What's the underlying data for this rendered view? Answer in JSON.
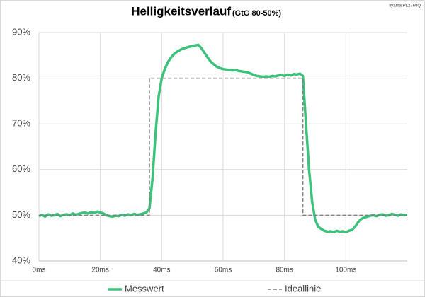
{
  "chart_data": {
    "type": "line",
    "title": "Helligkeitsverlauf",
    "subtitle": "(GtG 80-50%)",
    "annotation": "Iiyama PL2768Q",
    "xlim": [
      0,
      120
    ],
    "ylim": [
      40,
      90
    ],
    "xticks": [
      {
        "value": 0,
        "label": "0ms"
      },
      {
        "value": 20,
        "label": "20ms"
      },
      {
        "value": 40,
        "label": "40ms"
      },
      {
        "value": 60,
        "label": "60ms"
      },
      {
        "value": 80,
        "label": "80ms"
      },
      {
        "value": 100,
        "label": "100ms"
      }
    ],
    "yticks": [
      {
        "value": 40,
        "label": "40%"
      },
      {
        "value": 50,
        "label": "50%"
      },
      {
        "value": 60,
        "label": "60%"
      },
      {
        "value": 70,
        "label": "70%"
      },
      {
        "value": 80,
        "label": "80%"
      },
      {
        "value": 90,
        "label": "90%"
      }
    ],
    "grid": true,
    "series": [
      {
        "name": "Messwert",
        "color": "#3cc27a",
        "dashed": false,
        "x": [
          0,
          1,
          2,
          3,
          4,
          5,
          6,
          7,
          8,
          9,
          10,
          11,
          12,
          13,
          14,
          15,
          16,
          17,
          18,
          19,
          20,
          21,
          22,
          23,
          24,
          25,
          26,
          27,
          28,
          29,
          30,
          31,
          32,
          33,
          34,
          35,
          36,
          37,
          38,
          39,
          40,
          41,
          42,
          43,
          44,
          45,
          46,
          47,
          48,
          49,
          50,
          51,
          52,
          53,
          54,
          55,
          56,
          57,
          58,
          59,
          60,
          61,
          62,
          63,
          64,
          65,
          66,
          67,
          68,
          69,
          70,
          71,
          72,
          73,
          74,
          75,
          76,
          77,
          78,
          79,
          80,
          81,
          82,
          83,
          84,
          85,
          86,
          87,
          88,
          89,
          90,
          91,
          92,
          93,
          94,
          95,
          96,
          97,
          98,
          99,
          100,
          101,
          102,
          103,
          104,
          105,
          106,
          107,
          108,
          109,
          110,
          111,
          112,
          113,
          114,
          115,
          116,
          117,
          118,
          119,
          120
        ],
        "values": [
          49.8,
          50.1,
          49.7,
          50.2,
          49.9,
          50.0,
          50.3,
          49.8,
          50.1,
          50.2,
          50.0,
          50.4,
          50.1,
          50.3,
          50.5,
          50.6,
          50.4,
          50.7,
          50.5,
          50.8,
          50.6,
          50.4,
          50.0,
          49.8,
          49.7,
          49.9,
          49.8,
          50.1,
          49.9,
          50.2,
          50.0,
          50.3,
          50.1,
          50.2,
          50.4,
          50.6,
          51.5,
          58,
          68,
          76,
          80,
          82,
          83.5,
          84.5,
          85.3,
          85.8,
          86.2,
          86.5,
          86.7,
          86.9,
          87.0,
          87.2,
          87.3,
          86.5,
          85.5,
          84.5,
          83.6,
          83.0,
          82.5,
          82.2,
          82.0,
          81.9,
          81.8,
          81.7,
          81.8,
          81.6,
          81.5,
          81.4,
          81.3,
          81.0,
          80.7,
          80.5,
          80.4,
          80.3,
          80.4,
          80.3,
          80.5,
          80.4,
          80.6,
          80.7,
          80.5,
          80.8,
          80.6,
          80.9,
          80.8,
          81.0,
          80.5,
          70,
          60,
          53,
          49,
          47.5,
          47,
          46.6,
          46.4,
          46.5,
          46.3,
          46.6,
          46.4,
          46.5,
          46.3,
          46.6,
          46.8,
          47.5,
          48.5,
          49.2,
          49.5,
          49.7,
          49.9,
          50.0,
          49.8,
          50.1,
          50.2,
          49.9,
          50.0,
          50.3,
          50.1,
          49.9,
          50.2,
          50.0,
          50.1
        ]
      },
      {
        "name": "Ideallinie",
        "color": "#7f7f7f",
        "dashed": true,
        "x": [
          0,
          36,
          36,
          86,
          86,
          120
        ],
        "values": [
          50,
          50,
          80,
          80,
          50,
          50
        ]
      }
    ]
  }
}
